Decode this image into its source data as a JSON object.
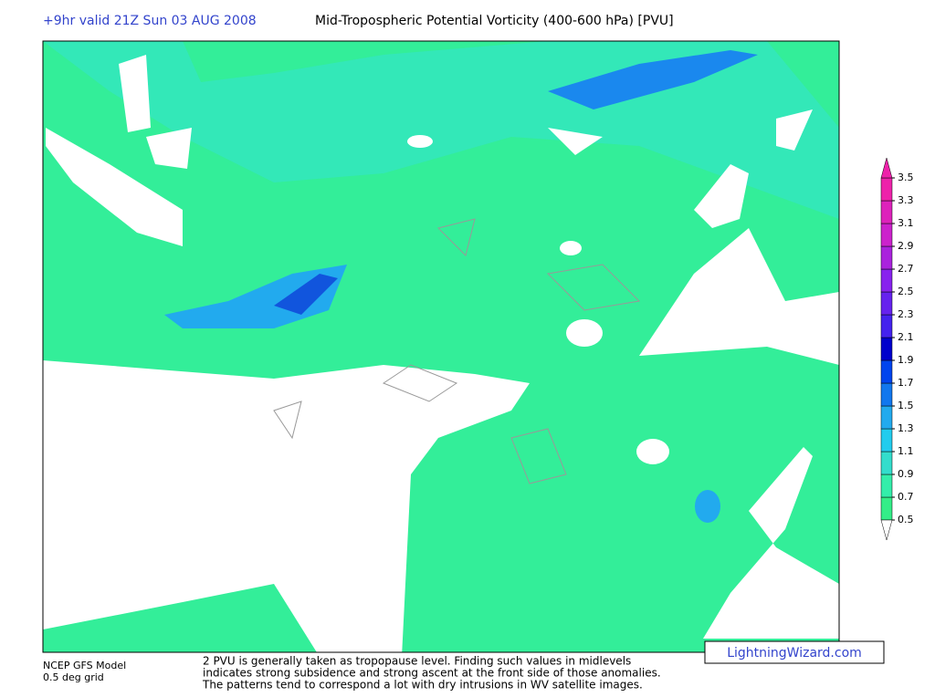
{
  "header": {
    "run": "+9hr valid 21Z Sun 03 AUG 2008",
    "title": "Mid-Tropospheric Potential Vorticity (400-600 hPa) [PVU]"
  },
  "colorbar": {
    "ticks": [
      0.5,
      0.7,
      0.9,
      1.1,
      1.3,
      1.5,
      1.7,
      1.9,
      2.1,
      2.3,
      2.5,
      2.7,
      2.9,
      3.1,
      3.3,
      3.5
    ],
    "colors": [
      "#33ee88",
      "#33eeaa",
      "#33ddcc",
      "#22ccee",
      "#22aaee",
      "#1177ee",
      "#0044ee",
      "#0000cc",
      "#4422ee",
      "#6622ee",
      "#8822ee",
      "#aa22dd",
      "#cc22cc",
      "#dd22bb",
      "#ee22aa"
    ]
  },
  "footer": {
    "model": "NCEP GFS Model",
    "grid": "0.5 deg grid",
    "notes": [
      "2 PVU is generally taken as tropopause level. Finding such values in midlevels",
      "indicates strong subsidence and strong ascent at the front side of those anomalies.",
      "The patterns tend to correspond a lot with dry intrusions in WV satellite images."
    ],
    "watermark": "LightningWizard.com"
  }
}
